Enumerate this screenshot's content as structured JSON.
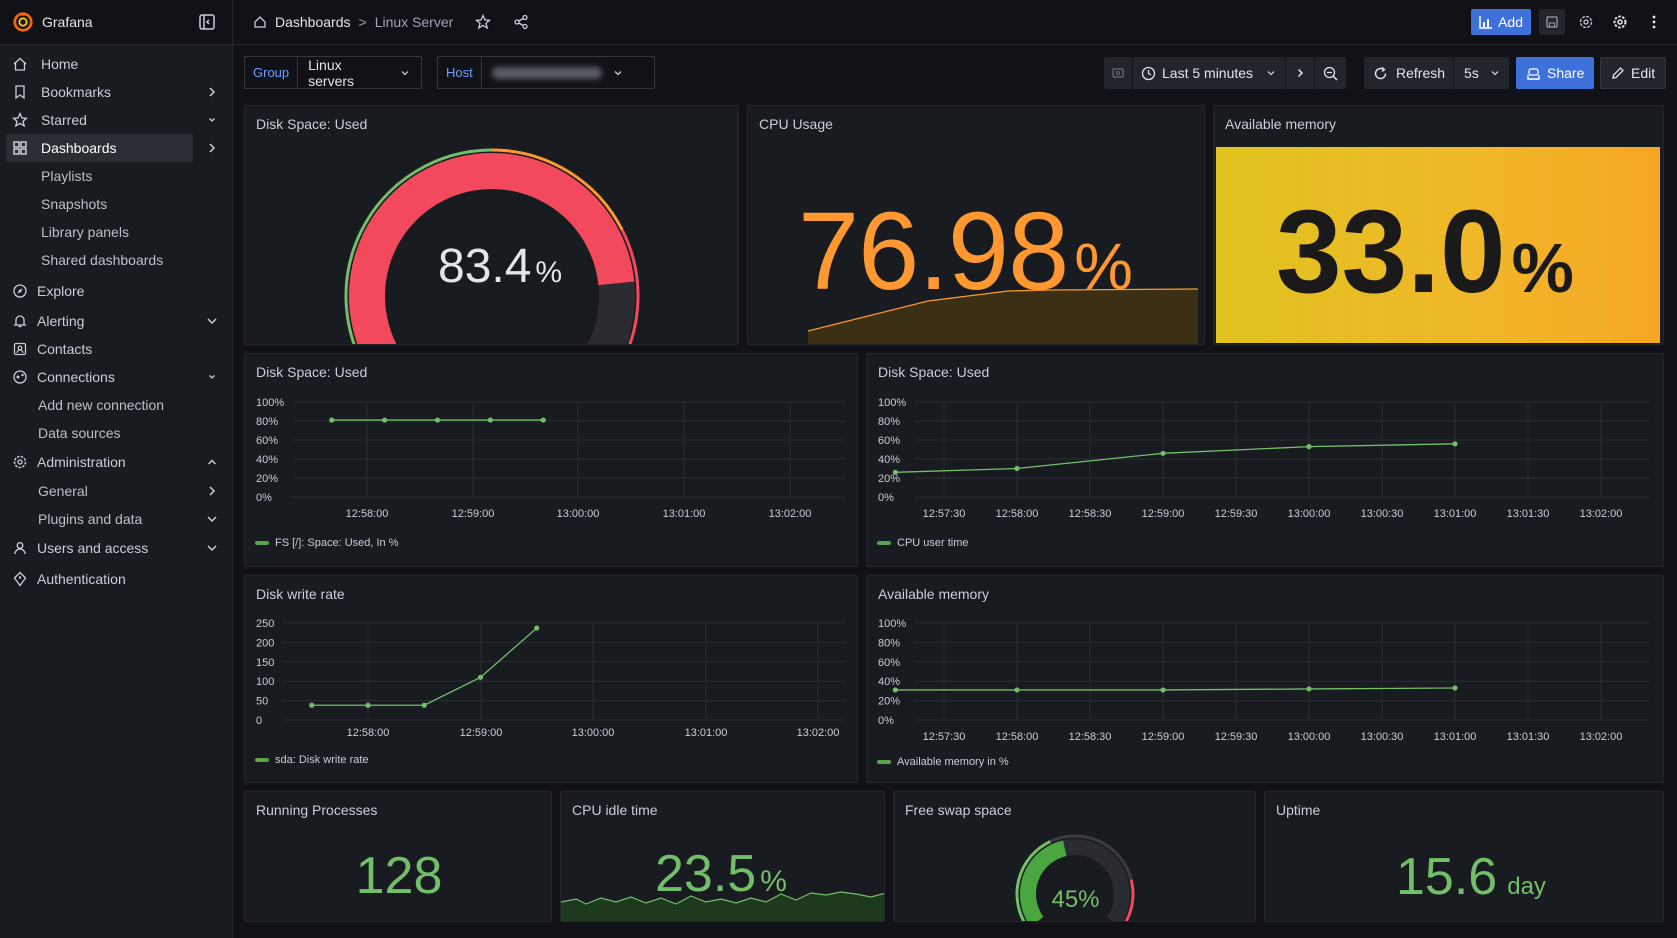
{
  "app": {
    "name": "Grafana"
  },
  "breadcrumb": {
    "item1": "Dashboards",
    "sep": ">",
    "item2": "Linux Server"
  },
  "toolbar": {
    "add_label": "Add",
    "share_label": "Share",
    "edit_label": "Edit",
    "refresh_label": "Refresh",
    "interval": "5s",
    "time_range": "Last 5 minutes"
  },
  "filters": {
    "group": {
      "key": "Group",
      "value": "Linux servers"
    },
    "host": {
      "key": "Host",
      "value": ""
    }
  },
  "sidebar": {
    "items": [
      {
        "label": "Home",
        "icon": "home-icon"
      },
      {
        "label": "Bookmarks",
        "icon": "bookmark-icon"
      },
      {
        "label": "Starred",
        "icon": "star-icon"
      },
      {
        "label": "Dashboards",
        "icon": "dashboards-icon"
      },
      {
        "label": "Playlists"
      },
      {
        "label": "Snapshots"
      },
      {
        "label": "Library panels"
      },
      {
        "label": "Shared dashboards"
      },
      {
        "label": "Explore",
        "icon": "compass-icon"
      },
      {
        "label": "Alerting",
        "icon": "bell-icon"
      },
      {
        "label": "Contacts",
        "icon": "contacts-icon"
      },
      {
        "label": "Connections",
        "icon": "connections-icon"
      },
      {
        "label": "Add new connection"
      },
      {
        "label": "Data sources"
      },
      {
        "label": "Administration",
        "icon": "gear-icon"
      },
      {
        "label": "General"
      },
      {
        "label": "Plugins and data"
      },
      {
        "label": "Users and access",
        "icon": "users-icon"
      },
      {
        "label": "Authentication",
        "icon": "shield-icon"
      }
    ]
  },
  "panels": {
    "disk_gauge": {
      "title": "Disk Space: Used",
      "value": "83.4",
      "unit": "%",
      "fraction": 0.834
    },
    "cpu_usage": {
      "title": "CPU Usage",
      "value": "76.98",
      "unit": "%"
    },
    "avail_mem_stat": {
      "title": "Available memory",
      "value": "33.0",
      "unit": "%"
    },
    "disk_ts": {
      "title": "Disk Space: Used",
      "legend": "FS [/]: Space: Used, In %"
    },
    "cpu_ts": {
      "title": "Disk Space: Used",
      "legend": "CPU user time"
    },
    "disk_write": {
      "title": "Disk write rate",
      "legend": "sda: Disk write rate"
    },
    "mem_ts": {
      "title": "Available memory",
      "legend": "Available memory in %"
    },
    "procs": {
      "title": "Running Processes",
      "value": "128"
    },
    "cpu_idle": {
      "title": "CPU idle time",
      "value": "23.5",
      "unit": "%"
    },
    "swap": {
      "title": "Free swap space",
      "value": "45%",
      "fraction": 0.45
    },
    "uptime": {
      "title": "Uptime",
      "value": "15.6",
      "unit": "day"
    }
  },
  "chart_data": [
    {
      "type": "line",
      "id": "disk_ts",
      "x": [
        "12:57:40",
        "12:58:10",
        "12:58:40",
        "12:59:10",
        "12:59:40"
      ],
      "ticks_x": [
        "12:58:00",
        "12:59:00",
        "13:00:00",
        "13:01:00",
        "13:02:00"
      ],
      "values": [
        81,
        81,
        81,
        81,
        81
      ],
      "ticks_y": [
        "100%",
        "80%",
        "60%",
        "40%",
        "20%",
        "0%"
      ],
      "ylim": [
        0,
        100
      ],
      "series": [
        {
          "name": "FS [/]: Space: Used, In %"
        }
      ]
    },
    {
      "type": "line",
      "id": "cpu_ts",
      "x": [
        "12:57:10",
        "12:58:00",
        "12:59:00",
        "13:00:00",
        "13:01:00"
      ],
      "ticks_x": [
        "12:57:30",
        "12:58:00",
        "12:58:30",
        "12:59:00",
        "12:59:30",
        "13:00:00",
        "13:00:30",
        "13:01:00",
        "13:01:30",
        "13:02:00"
      ],
      "values": [
        26,
        30,
        46,
        53,
        56
      ],
      "ticks_y": [
        "100%",
        "80%",
        "60%",
        "40%",
        "20%",
        "0%"
      ],
      "ylim": [
        0,
        100
      ],
      "series": [
        {
          "name": "CPU user time"
        }
      ]
    },
    {
      "type": "line",
      "id": "disk_write",
      "x": [
        "12:57:30",
        "12:58:00",
        "12:58:30",
        "12:59:00",
        "12:59:30"
      ],
      "ticks_x": [
        "12:58:00",
        "12:59:00",
        "13:00:00",
        "13:01:00",
        "13:02:00"
      ],
      "values": [
        38,
        38,
        38,
        110,
        237
      ],
      "ticks_y": [
        "250",
        "200",
        "150",
        "100",
        "50",
        "0"
      ],
      "ylim": [
        0,
        250
      ],
      "series": [
        {
          "name": "sda: Disk write rate"
        }
      ]
    },
    {
      "type": "line",
      "id": "mem_ts",
      "x": [
        "12:57:10",
        "12:58:00",
        "12:59:00",
        "13:00:00",
        "13:01:00"
      ],
      "ticks_x": [
        "12:57:30",
        "12:58:00",
        "12:58:30",
        "12:59:00",
        "12:59:30",
        "13:00:00",
        "13:00:30",
        "13:01:00",
        "13:01:30",
        "13:02:00"
      ],
      "values": [
        31,
        31,
        31,
        32,
        33
      ],
      "ticks_y": [
        "100%",
        "80%",
        "60%",
        "40%",
        "20%",
        "0%"
      ],
      "ylim": [
        0,
        100
      ],
      "series": [
        {
          "name": "Available memory in %"
        }
      ]
    }
  ],
  "colors": {
    "green": "#73bf69",
    "red": "#f2495c",
    "orange": "#ff9830",
    "yellow": "#fade2a",
    "blue": "#3d71d9",
    "panel_bg": "#181b1f"
  }
}
